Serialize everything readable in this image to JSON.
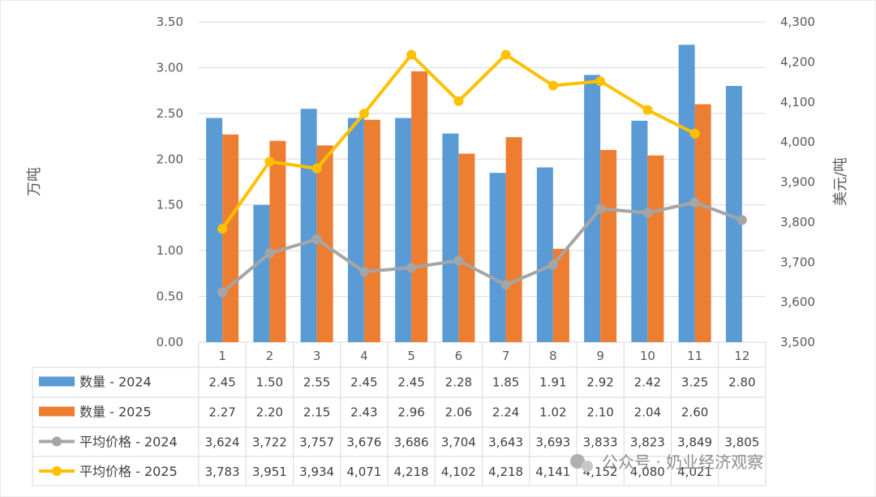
{
  "watermark": "公众号 · 奶业经济观察",
  "chart_data": {
    "type": "bar+line",
    "categories": [
      "1",
      "2",
      "3",
      "4",
      "5",
      "6",
      "7",
      "8",
      "9",
      "10",
      "11",
      "12"
    ],
    "y_left": {
      "label": "万吨",
      "range": [
        0,
        3.5
      ],
      "ticks": [
        "0.00",
        "0.50",
        "1.00",
        "1.50",
        "2.00",
        "2.50",
        "3.00",
        "3.50"
      ],
      "tick_values": [
        0,
        0.5,
        1,
        1.5,
        2,
        2.5,
        3,
        3.5
      ]
    },
    "y_right": {
      "label": "美元/吨",
      "range": [
        3500,
        4300
      ],
      "ticks": [
        "3,500",
        "3,600",
        "3,700",
        "3,800",
        "3,900",
        "4,000",
        "4,100",
        "4,200",
        "4,300"
      ],
      "tick_values": [
        3500,
        3600,
        3700,
        3800,
        3900,
        4000,
        4100,
        4200,
        4300
      ]
    },
    "grid": true,
    "legend": "data-table",
    "series": [
      {
        "name": "数量 - 2024",
        "kind": "bar",
        "axis": "left",
        "color": "#5b9bd5",
        "values": [
          2.45,
          1.5,
          2.55,
          2.45,
          2.45,
          2.28,
          1.85,
          1.91,
          2.92,
          2.42,
          3.25,
          2.8
        ],
        "labels": [
          "2.45",
          "1.50",
          "2.55",
          "2.45",
          "2.45",
          "2.28",
          "1.85",
          "1.91",
          "2.92",
          "2.42",
          "3.25",
          "2.80"
        ]
      },
      {
        "name": "数量 - 2025",
        "kind": "bar",
        "axis": "left",
        "color": "#ed7d31",
        "values": [
          2.27,
          2.2,
          2.15,
          2.43,
          2.96,
          2.06,
          2.24,
          1.02,
          2.1,
          2.04,
          2.6,
          null
        ],
        "labels": [
          "2.27",
          "2.20",
          "2.15",
          "2.43",
          "2.96",
          "2.06",
          "2.24",
          "1.02",
          "2.10",
          "2.04",
          "2.60",
          ""
        ]
      },
      {
        "name": "平均价格 - 2024",
        "kind": "line",
        "axis": "right",
        "color": "#a5a5a5",
        "values": [
          3624,
          3722,
          3757,
          3676,
          3686,
          3704,
          3643,
          3693,
          3833,
          3823,
          3849,
          3805
        ],
        "labels": [
          "3,624",
          "3,722",
          "3,757",
          "3,676",
          "3,686",
          "3,704",
          "3,643",
          "3,693",
          "3,833",
          "3,823",
          "3,849",
          "3,805"
        ]
      },
      {
        "name": "平均价格 - 2025",
        "kind": "line",
        "axis": "right",
        "color": "#ffc000",
        "values": [
          3783,
          3951,
          3934,
          4071,
          4218,
          4102,
          4218,
          4141,
          4152,
          4080,
          4021,
          null
        ],
        "labels": [
          "3,783",
          "3,951",
          "3,934",
          "4,071",
          "4,218",
          "4,102",
          "4,218",
          "4,141",
          "4,152",
          "4,080",
          "4,021",
          ""
        ]
      }
    ]
  }
}
